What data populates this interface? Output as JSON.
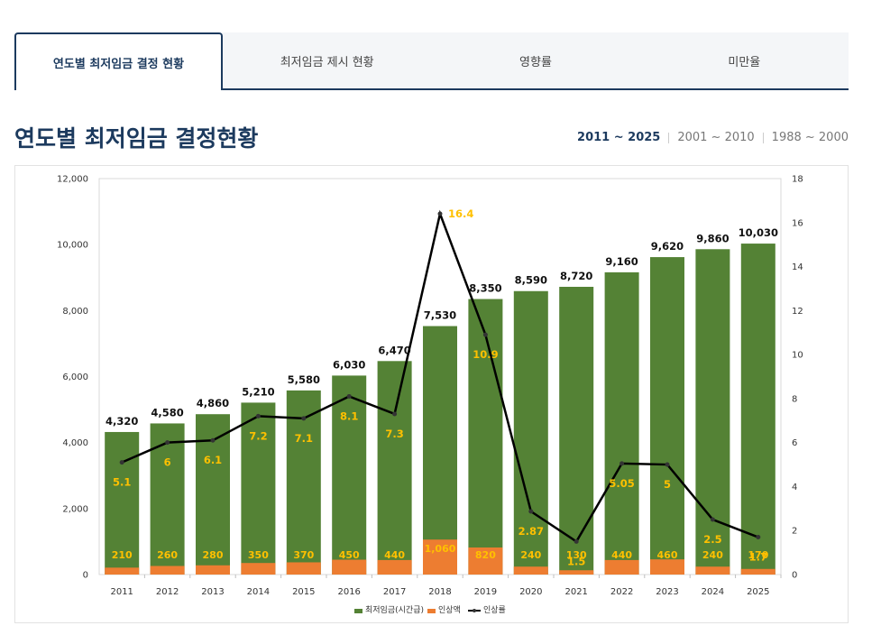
{
  "tabs": [
    {
      "label": "연도별 최저임금 결정 현황",
      "active": true
    },
    {
      "label": "최저임금 제시 현황",
      "active": false
    },
    {
      "label": "영향률",
      "active": false
    },
    {
      "label": "미만율",
      "active": false
    }
  ],
  "page_title": "연도별 최저임금 결정현황",
  "ranges": [
    {
      "label": "2011 ~ 2025",
      "active": true
    },
    {
      "label": "2001 ~ 2010",
      "active": false
    },
    {
      "label": "1988 ~ 2000",
      "active": false
    }
  ],
  "colors": {
    "wage_bar": "#548235",
    "increase_bar": "#ed7d31",
    "rate_line": "#000000",
    "inner_label": "#ffc000",
    "accent": "#1c3a5e"
  },
  "chart_data": {
    "type": "bar",
    "categories": [
      "2011",
      "2012",
      "2013",
      "2014",
      "2015",
      "2016",
      "2017",
      "2018",
      "2019",
      "2020",
      "2021",
      "2022",
      "2023",
      "2024",
      "2025"
    ],
    "series": [
      {
        "name": "최저임금(시간급)",
        "type": "bar",
        "axis": "left",
        "values": [
          4320,
          4580,
          4860,
          5210,
          5580,
          6030,
          6470,
          7530,
          8350,
          8590,
          8720,
          9160,
          9620,
          9860,
          10030
        ],
        "labels": [
          "4,320",
          "4,580",
          "4,860",
          "5,210",
          "5,580",
          "6,030",
          "6,470",
          "7,530",
          "8,350",
          "8,590",
          "8,720",
          "9,160",
          "9,620",
          "9,860",
          "10,030"
        ]
      },
      {
        "name": "인상액",
        "type": "bar",
        "axis": "left",
        "values": [
          210,
          260,
          280,
          350,
          370,
          450,
          440,
          1060,
          820,
          240,
          130,
          440,
          460,
          240,
          170
        ],
        "labels": [
          "210",
          "260",
          "280",
          "350",
          "370",
          "450",
          "440",
          "1,060",
          "820",
          "240",
          "130",
          "440",
          "460",
          "240",
          "170"
        ]
      },
      {
        "name": "인상률",
        "type": "line",
        "axis": "right",
        "values": [
          5.1,
          6,
          6.1,
          7.2,
          7.1,
          8.1,
          7.3,
          16.4,
          10.9,
          2.87,
          1.5,
          5.05,
          5,
          2.5,
          1.7
        ],
        "labels": [
          "5.1",
          "6",
          "6.1",
          "7.2",
          "7.1",
          "8.1",
          "7.3",
          "16.4",
          "10.9",
          "2.87",
          "1.5",
          "5.05",
          "5",
          "2.5",
          "1.7"
        ]
      }
    ],
    "y_left": {
      "min": 0,
      "max": 12000,
      "ticks": [
        "0",
        "2,000",
        "4,000",
        "6,000",
        "8,000",
        "10,000",
        "12,000"
      ]
    },
    "y_right": {
      "min": 0,
      "max": 18,
      "ticks": [
        "0",
        "2",
        "4",
        "6",
        "8",
        "10",
        "12",
        "14",
        "16",
        "18"
      ]
    },
    "legend": [
      "최저임금(시간급)",
      "인상액",
      "인상률"
    ],
    "legend_position": "bottom"
  }
}
